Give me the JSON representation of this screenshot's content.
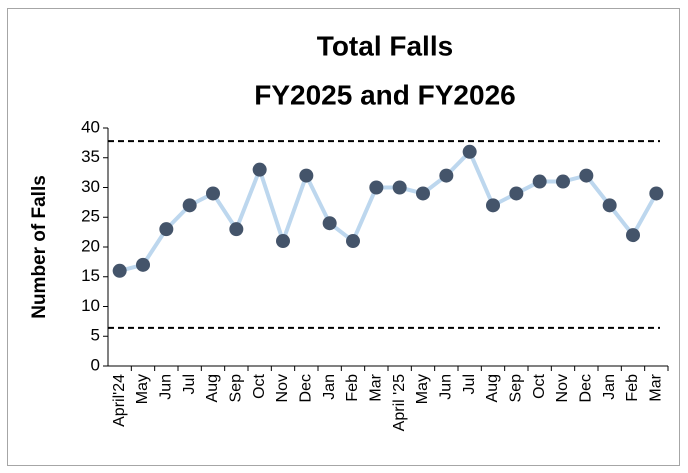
{
  "chart_data": {
    "type": "line",
    "title": [
      "Total Falls",
      "FY2025 and FY2026"
    ],
    "y_label": "Number of Falls",
    "categories": [
      "April'24",
      "May",
      "Jun",
      "Jul",
      "Aug",
      "Sep",
      "Oct",
      "Nov",
      "Dec",
      "Jan",
      "Feb",
      "Mar",
      "April '25",
      "May",
      "Jun",
      "Jul",
      "Aug",
      "Sep",
      "Oct",
      "Nov",
      "Dec",
      "Jan",
      "Feb",
      "Mar"
    ],
    "values": [
      16,
      17,
      23,
      27,
      29,
      23,
      33,
      21,
      32,
      24,
      21,
      30,
      30,
      29,
      32,
      36,
      27,
      29,
      31,
      31,
      32,
      27,
      22,
      29
    ],
    "color": "#bdd7ee",
    "marker_color": "#44546a",
    "reference_lines": [
      37.8,
      6.4
    ],
    "ylim": [
      0,
      40
    ],
    "yticks": [
      0,
      5,
      10,
      15,
      20,
      25,
      30,
      35,
      40
    ],
    "grid": false
  }
}
